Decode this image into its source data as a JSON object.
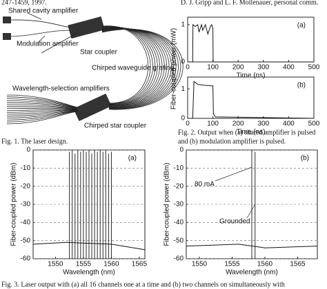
{
  "header": {
    "left": "247-1459, 1997.",
    "right": "D. J. Gripp and L. F. Mollenauer, personal comm."
  },
  "figure1": {
    "labels": [
      "Shared cavity amplifier",
      "Modulation amplifier",
      "Star coupler",
      "Chirped waveguide grating",
      "Wavelength-selection amplifiers",
      "Chirped star coupler"
    ],
    "caption": "Fig. 1.  The laser design."
  },
  "figure2": {
    "ylabel": "Fiber-coupled power (mW)",
    "caption": [
      "Fig. 2.  Output when (a) shared amplifier is pulsed",
      "and (b) modulation amplifier is pulsed."
    ],
    "panels": [
      {
        "type": "line",
        "label": "(a)",
        "xlabel": "Time (ns)",
        "xlim": [
          0,
          500
        ],
        "ylim": [
          0,
          1.2
        ],
        "xticks": [
          0,
          100,
          200,
          300,
          400,
          500
        ],
        "yticks": [
          0,
          1
        ],
        "grid": false,
        "series": [
          {
            "color": "#111",
            "x": [
              0,
              20,
              21,
              30,
              40,
              45,
              55,
              60,
              70,
              80,
              90,
              95,
              100,
              101,
              500
            ],
            "values": [
              0,
              0,
              1,
              0.95,
              1,
              0.8,
              1,
              0.85,
              1,
              0.75,
              0.95,
              1,
              0.9,
              0,
              0
            ]
          }
        ]
      },
      {
        "type": "line",
        "label": "(b)",
        "xlabel": "Time (ns)",
        "xlim": [
          0,
          500
        ],
        "ylim": [
          0,
          1.4
        ],
        "xticks": [
          0,
          100,
          200,
          300,
          400,
          500
        ],
        "yticks": [
          0,
          1
        ],
        "grid": false,
        "series": [
          {
            "color": "#111",
            "x": [
              0,
              20,
              25,
              40,
              70,
              100,
              102,
              110,
              500
            ],
            "values": [
              0,
              0,
              1.25,
              1.15,
              1.12,
              1.1,
              0.15,
              0.05,
              0
            ]
          }
        ]
      }
    ]
  },
  "figure3": {
    "caption": "Fig. 3.  Laser output with (a) all 16 channels one at a time and (b) two channels on simultaneously with",
    "panels": [
      {
        "type": "peaks",
        "label": "(a)",
        "xlabel": "Wavelength (nm)",
        "ylabel": "Fiber-coupled power (dBm)",
        "xlim": [
          1546,
          1566
        ],
        "ylim": [
          -60,
          0
        ],
        "xticks": [
          1550,
          1555,
          1560,
          1565
        ],
        "yticks": [
          0,
          -10,
          -20,
          -30,
          -40,
          -50,
          -60
        ],
        "grid": true,
        "peaks": {
          "color": "#111",
          "x": [
            1552.5,
            1553.0,
            1553.5,
            1554.0,
            1554.5,
            1555.0,
            1555.5,
            1556.0,
            1556.5,
            1557.0,
            1557.5,
            1558.0,
            1558.5,
            1559.0,
            1559.5,
            1560.0
          ],
          "values": [
            -1,
            0,
            -2,
            0,
            -1,
            0,
            -1,
            0,
            -2,
            0,
            -1,
            0,
            -1,
            0,
            -2,
            -1
          ]
        },
        "series": [
          {
            "color": "#111",
            "x": [
              1546,
              1552,
              1560,
              1566
            ],
            "values": [
              -52,
              -51,
              -52,
              -55
            ]
          }
        ]
      },
      {
        "type": "peaks",
        "label": "(b)",
        "xlabel": "Wavelength (nm)",
        "ylabel": "Fiber-coupled power (dBm)",
        "xlim": [
          1548,
          1568
        ],
        "ylim": [
          -60,
          0
        ],
        "xticks": [
          1550,
          1555,
          1560,
          1565
        ],
        "yticks": [
          0,
          -10,
          -20,
          -30,
          -40,
          -50,
          -60
        ],
        "grid": true,
        "annotations": [
          "80 mA",
          "Grounded"
        ],
        "peaks": {
          "color": "#111",
          "x": [
            1558.0,
            1558.5
          ],
          "values": [
            0,
            -1
          ]
        },
        "series": [
          {
            "color": "#111",
            "x": [
              1548,
              1556,
              1560,
              1568
            ],
            "values": [
              -53,
              -52,
              -54,
              -53
            ]
          }
        ]
      }
    ]
  }
}
